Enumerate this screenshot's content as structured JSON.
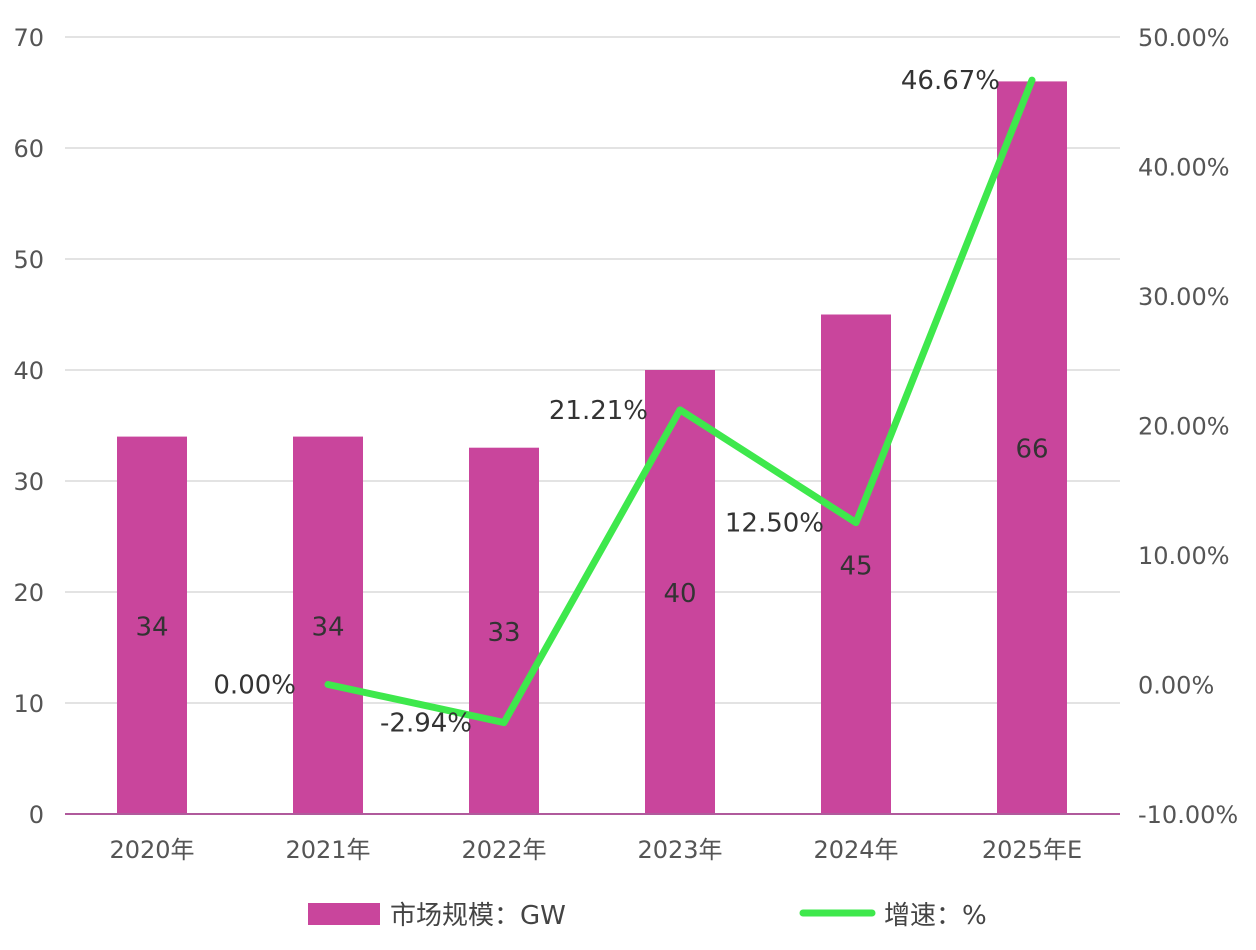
{
  "chart_data": {
    "type": "bar+line",
    "categories": [
      "2020年",
      "2021年",
      "2022年",
      "2023年",
      "2024年",
      "2025年E"
    ],
    "series": [
      {
        "name": "市场规模：GW",
        "type": "bar",
        "axis": "left",
        "values": [
          34,
          34,
          33,
          40,
          45,
          66
        ],
        "labels": [
          "34",
          "34",
          "33",
          "40",
          "45",
          "66"
        ],
        "color": "#c9459c"
      },
      {
        "name": "增速：%",
        "type": "line",
        "axis": "right",
        "values": [
          null,
          0.0,
          -2.94,
          21.21,
          12.5,
          46.67
        ],
        "labels": [
          "",
          "0.00%",
          "-2.94%",
          "21.21%",
          "12.50%",
          "46.67%"
        ],
        "color": "#3ee84c"
      }
    ],
    "left_axis": {
      "range": [
        0,
        70
      ],
      "ticks": [
        "0",
        "10",
        "20",
        "30",
        "40",
        "50",
        "60",
        "70"
      ],
      "tick_values": [
        0,
        10,
        20,
        30,
        40,
        50,
        60,
        70
      ]
    },
    "right_axis": {
      "range": [
        -10,
        50
      ],
      "ticks": [
        "-10.00%",
        "0.00%",
        "10.00%",
        "20.00%",
        "30.00%",
        "40.00%",
        "50.00%"
      ],
      "tick_values": [
        -10,
        0,
        10,
        20,
        30,
        40,
        50
      ]
    },
    "grid": true,
    "legend": "bottom",
    "legend_entries": [
      "市场规模：GW",
      "增速：%"
    ]
  }
}
